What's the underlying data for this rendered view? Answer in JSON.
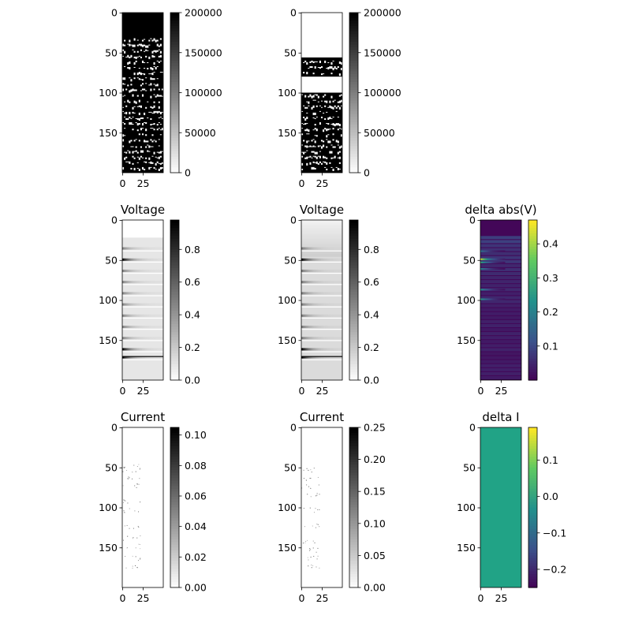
{
  "figure": {
    "background": "#ffffff"
  },
  "chart_data": [
    {
      "type": "heatmap",
      "title": "",
      "colormap": "gray_r",
      "pattern": "stripes_full",
      "xlim": [
        0,
        49
      ],
      "ylim": [
        199,
        0
      ],
      "xticks": [
        "0",
        "25"
      ],
      "yticks": [
        "0",
        "50",
        "100",
        "150"
      ],
      "colorbar": {
        "min": 0,
        "max": 200000,
        "ticks": [
          "0",
          "50000",
          "100000",
          "150000",
          "200000"
        ]
      }
    },
    {
      "type": "heatmap",
      "title": "",
      "colormap": "gray_r",
      "pattern": "stripes_gap",
      "xlim": [
        0,
        49
      ],
      "ylim": [
        199,
        0
      ],
      "xticks": [
        "0",
        "25"
      ],
      "yticks": [
        "0",
        "50",
        "100",
        "150"
      ],
      "colorbar": {
        "min": 0,
        "max": 200000,
        "ticks": [
          "0",
          "50000",
          "100000",
          "150000",
          "200000"
        ]
      }
    },
    {
      "type": "heatmap",
      "title": "Voltage",
      "colormap": "gray_r",
      "pattern": "voltage_a",
      "xlim": [
        0,
        49
      ],
      "ylim": [
        199,
        0
      ],
      "xticks": [
        "0",
        "25"
      ],
      "yticks": [
        "0",
        "50",
        "100",
        "150"
      ],
      "colorbar": {
        "min": 0,
        "max": 0.98,
        "ticks": [
          "0.0",
          "0.2",
          "0.4",
          "0.6",
          "0.8"
        ]
      }
    },
    {
      "type": "heatmap",
      "title": "Voltage",
      "colormap": "gray_r",
      "pattern": "voltage_b",
      "xlim": [
        0,
        49
      ],
      "ylim": [
        199,
        0
      ],
      "xticks": [
        "0",
        "25"
      ],
      "yticks": [
        "0",
        "50",
        "100",
        "150"
      ],
      "colorbar": {
        "min": 0,
        "max": 0.98,
        "ticks": [
          "0.0",
          "0.2",
          "0.4",
          "0.6",
          "0.8"
        ]
      }
    },
    {
      "type": "heatmap",
      "title": "delta abs(V)",
      "colormap": "viridis",
      "pattern": "delta_v",
      "xlim": [
        0,
        49
      ],
      "ylim": [
        199,
        0
      ],
      "xticks": [
        "0",
        "25"
      ],
      "yticks": [
        "0",
        "50",
        "100",
        "150"
      ],
      "colorbar": {
        "min": 0.0,
        "max": 0.47,
        "ticks": [
          "0.1",
          "0.2",
          "0.3",
          "0.4"
        ]
      }
    },
    {
      "type": "heatmap",
      "title": "Current",
      "colormap": "gray_r",
      "pattern": "current_a",
      "xlim": [
        0,
        49
      ],
      "ylim": [
        199,
        0
      ],
      "xticks": [
        "0",
        "25"
      ],
      "yticks": [
        "0",
        "50",
        "100",
        "150"
      ],
      "colorbar": {
        "min": 0,
        "max": 0.105,
        "ticks": [
          "0.00",
          "0.02",
          "0.04",
          "0.06",
          "0.08",
          "0.10"
        ]
      }
    },
    {
      "type": "heatmap",
      "title": "Current",
      "colormap": "gray_r",
      "pattern": "current_b",
      "xlim": [
        0,
        49
      ],
      "ylim": [
        199,
        0
      ],
      "xticks": [
        "0",
        "25"
      ],
      "yticks": [
        "0",
        "50",
        "100",
        "150"
      ],
      "colorbar": {
        "min": 0,
        "max": 0.25,
        "ticks": [
          "0.00",
          "0.05",
          "0.10",
          "0.15",
          "0.20",
          "0.25"
        ]
      }
    },
    {
      "type": "heatmap",
      "title": "delta I",
      "colormap": "viridis",
      "pattern": "uniform",
      "uniform_color": "#21a386",
      "xlim": [
        0,
        49
      ],
      "ylim": [
        199,
        0
      ],
      "xticks": [
        "0",
        "25"
      ],
      "yticks": [
        "0",
        "50",
        "100",
        "150"
      ],
      "colorbar": {
        "min": -0.25,
        "max": 0.19,
        "ticks": [
          "−0.2",
          "−0.1",
          "0.0",
          "0.1"
        ]
      }
    }
  ]
}
